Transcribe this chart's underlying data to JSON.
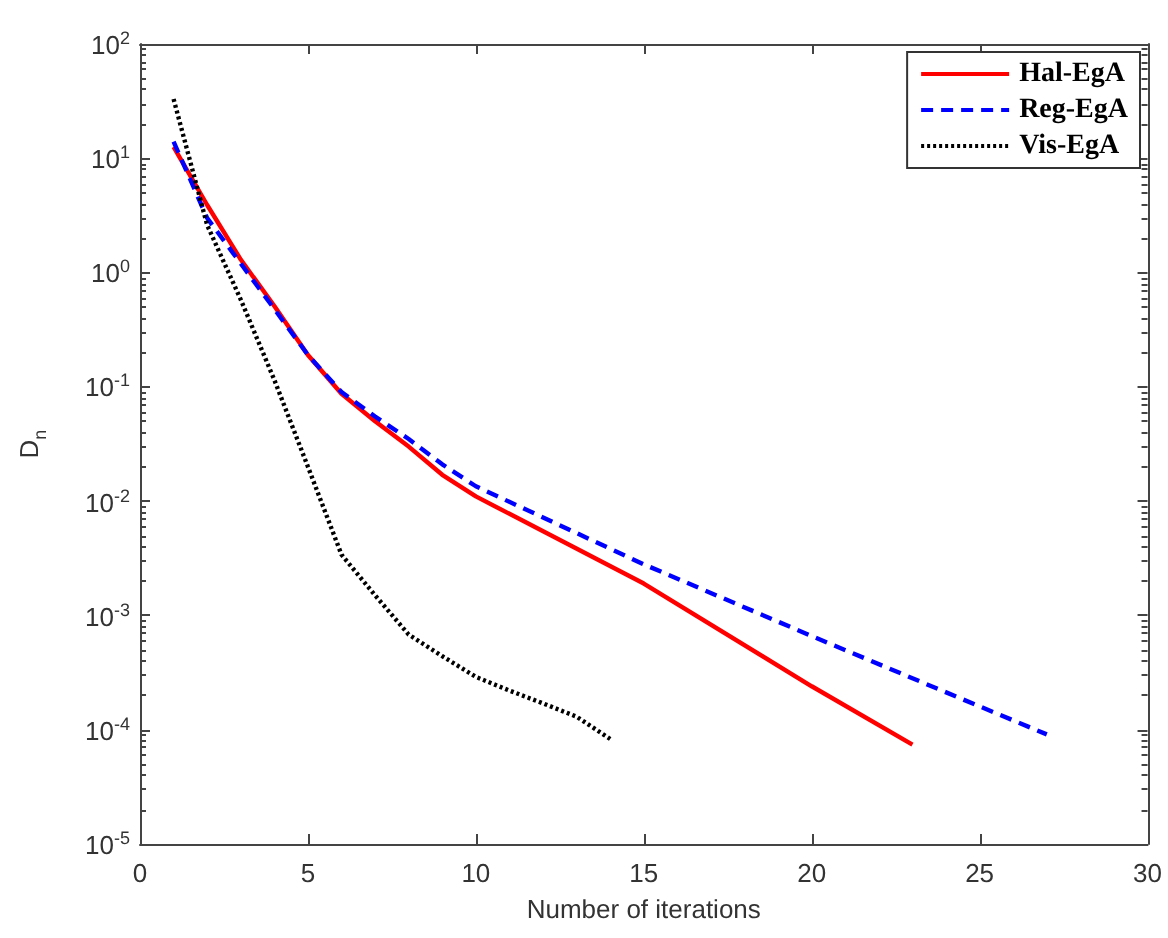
{
  "chart_data": {
    "type": "line",
    "xlabel": "Number of iterations",
    "ylabel": "D$_{n}$",
    "log": "y",
    "grid": false,
    "legend": "top right",
    "marker": "none",
    "xlim": [
      0,
      30
    ],
    "xticks": [
      0,
      5,
      10,
      15,
      20,
      25,
      30
    ],
    "ylim": [
      1e-05,
      100
    ],
    "yticks": [
      {
        "value": 1e-05,
        "label": "10$^{-5}$"
      },
      {
        "value": 0.0001,
        "label": "10$^{-4}$"
      },
      {
        "value": 0.001,
        "label": "10$^{-3}$"
      },
      {
        "value": 0.01,
        "label": "10$^{-2}$"
      },
      {
        "value": 0.1,
        "label": "10$^{-1}$"
      },
      {
        "value": 1,
        "label": "10$^{0}$"
      },
      {
        "value": 10,
        "label": "10$^{1}$"
      },
      {
        "value": 100,
        "label": "10$^{2}$"
      }
    ],
    "series": [
      {
        "name": "Hal-EgA",
        "color": "#ff0000",
        "line_style": "solid",
        "x": [
          1,
          2,
          3,
          4,
          5,
          6,
          7,
          8,
          9,
          10,
          15,
          20,
          23
        ],
        "values": [
          12.6,
          3.9,
          1.3,
          0.51,
          0.19,
          0.087,
          0.05,
          0.03,
          0.017,
          0.011,
          0.0019,
          0.00024,
          7.4e-05
        ]
      },
      {
        "name": "Reg-EgA",
        "color": "#0000ff",
        "line_style": "dashed",
        "x": [
          1,
          2,
          3,
          4,
          5,
          6,
          7,
          8,
          9,
          10,
          15,
          20,
          25,
          27
        ],
        "values": [
          14,
          3.0,
          1.2,
          0.48,
          0.19,
          0.09,
          0.055,
          0.035,
          0.021,
          0.0135,
          0.0028,
          0.00066,
          0.00016,
          9.1e-05
        ]
      },
      {
        "name": "Vis-EgA",
        "color": "#000000",
        "line_style": "dotted",
        "x": [
          1,
          2,
          3,
          4,
          5,
          6,
          7,
          8,
          9,
          10,
          11,
          12,
          13,
          14
        ],
        "values": [
          33,
          2.6,
          0.58,
          0.115,
          0.02,
          0.0034,
          0.0015,
          0.00068,
          0.00044,
          0.00029,
          0.00022,
          0.00017,
          0.00013,
          8.3e-05
        ]
      }
    ]
  }
}
